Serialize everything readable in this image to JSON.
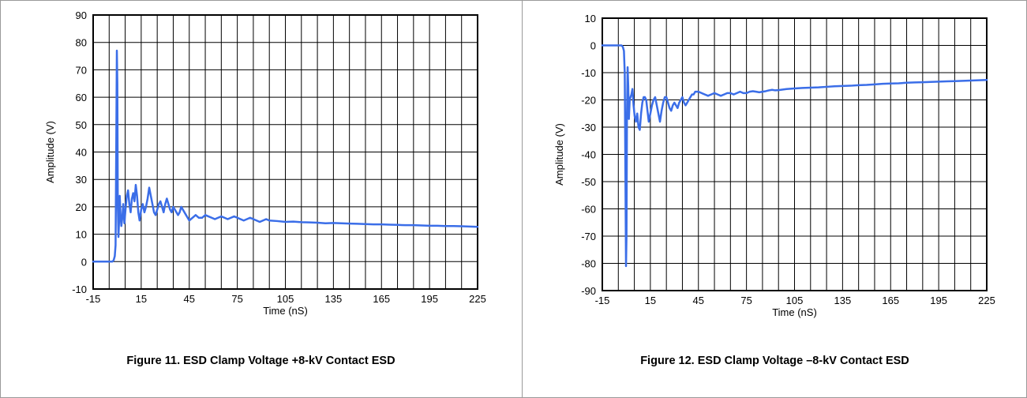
{
  "chart_data": [
    {
      "type": "line",
      "caption": "Figure 11. ESD Clamp Voltage +8-kV Contact ESD",
      "xlabel": "Time (nS)",
      "ylabel": "Amplitude (V)",
      "xlim": [
        -15,
        225
      ],
      "ylim": [
        -10,
        90
      ],
      "xticks": [
        -15,
        15,
        45,
        75,
        105,
        135,
        165,
        195,
        225
      ],
      "yticks": [
        -10,
        0,
        10,
        20,
        30,
        40,
        50,
        60,
        70,
        80,
        90
      ],
      "grid": true,
      "color": "#3b6ee8",
      "series": [
        {
          "x": [
            -15,
            -3,
            -2.2,
            -1.5,
            -1,
            -0.6,
            -0.2,
            0.1,
            0.4,
            0.8,
            1.2,
            1.6,
            2.1,
            2.6,
            3.2,
            3.8,
            4.5,
            5.2,
            6,
            6.8,
            7.6,
            8.4,
            9.2,
            10,
            10.8,
            11.6,
            12.4,
            13.2,
            14,
            15,
            16,
            17,
            18,
            19,
            20,
            21,
            22,
            23,
            24,
            25,
            26,
            27,
            28,
            29,
            30,
            31,
            32,
            33,
            34,
            35,
            36,
            37,
            38,
            39,
            40,
            41,
            42,
            43,
            44,
            45,
            47,
            49,
            51,
            53,
            55,
            57,
            59,
            61,
            63,
            65,
            67,
            69,
            71,
            73,
            75,
            77,
            79,
            81,
            83,
            85,
            87,
            89,
            91,
            93,
            95,
            100,
            105,
            110,
            115,
            120,
            125,
            130,
            135,
            140,
            145,
            150,
            155,
            160,
            165,
            170,
            175,
            180,
            185,
            190,
            195,
            200,
            205,
            210,
            215,
            220,
            225
          ],
          "y": [
            0,
            0,
            0.5,
            2,
            6,
            40,
            77,
            65,
            20,
            9,
            15,
            24,
            17,
            13,
            16,
            21,
            14,
            19,
            24,
            26,
            21,
            18,
            23,
            25,
            22,
            28,
            24,
            18,
            15,
            19,
            21,
            18,
            20,
            23,
            27,
            24,
            21,
            18,
            17,
            19,
            21,
            22,
            20,
            18,
            21,
            23,
            21,
            19,
            18,
            20,
            19,
            18,
            17,
            18,
            20,
            19,
            18,
            17,
            16,
            15,
            16,
            17,
            16,
            16,
            17,
            16.5,
            16,
            15.5,
            16,
            16.5,
            16,
            15.5,
            16,
            16.5,
            16,
            15.5,
            15,
            15.5,
            16,
            15.5,
            15,
            14.5,
            15,
            15.5,
            15,
            14.8,
            14.5,
            14.6,
            14.4,
            14.3,
            14.2,
            14,
            14.1,
            14,
            13.9,
            13.8,
            13.7,
            13.6,
            13.6,
            13.5,
            13.4,
            13.3,
            13.3,
            13.2,
            13.1,
            13.1,
            13,
            13,
            12.9,
            12.8,
            12.7
          ]
        }
      ]
    },
    {
      "type": "line",
      "caption": "Figure 12. ESD Clamp Voltage –8-kV Contact ESD",
      "xlabel": "Time (nS)",
      "ylabel": "Amplitude (V)",
      "xlim": [
        -15,
        225
      ],
      "ylim": [
        -90,
        10
      ],
      "xticks": [
        -15,
        15,
        45,
        75,
        105,
        135,
        165,
        195,
        225
      ],
      "yticks": [
        -90,
        -80,
        -70,
        -60,
        -50,
        -40,
        -30,
        -20,
        -10,
        0,
        10
      ],
      "grid": true,
      "color": "#3b6ee8",
      "series": [
        {
          "x": [
            -15,
            -3,
            -2.2,
            -1.5,
            -1,
            -0.6,
            -0.2,
            0.1,
            0.4,
            0.8,
            1.2,
            1.6,
            2.1,
            2.6,
            3.2,
            3.8,
            4.5,
            5.2,
            6,
            6.8,
            7.6,
            8.4,
            9.2,
            10,
            10.8,
            11.6,
            12.4,
            13.2,
            14,
            15,
            16,
            17,
            18,
            19,
            20,
            21,
            22,
            23,
            24,
            25,
            26,
            27,
            28,
            29,
            30,
            31,
            32,
            33,
            34,
            35,
            36,
            37,
            38,
            39,
            40,
            41,
            42,
            43,
            44,
            45,
            47,
            49,
            51,
            53,
            55,
            57,
            59,
            61,
            63,
            65,
            67,
            69,
            71,
            73,
            75,
            77,
            79,
            81,
            83,
            85,
            87,
            89,
            91,
            93,
            95,
            100,
            105,
            110,
            115,
            120,
            125,
            130,
            135,
            140,
            145,
            150,
            155,
            160,
            165,
            170,
            175,
            180,
            185,
            190,
            195,
            200,
            205,
            210,
            215,
            220,
            225
          ],
          "y": [
            0,
            0,
            -0.5,
            -2,
            -10,
            -45,
            -81,
            -70,
            -25,
            -8,
            -15,
            -27,
            -20,
            -19,
            -18,
            -16,
            -22,
            -26,
            -28,
            -25,
            -30,
            -31,
            -25,
            -21,
            -19,
            -19,
            -20,
            -24,
            -28,
            -25,
            -22,
            -20,
            -19,
            -22,
            -25,
            -28,
            -24,
            -21,
            -19,
            -19,
            -21,
            -23,
            -24,
            -22,
            -21,
            -22,
            -23,
            -21,
            -20,
            -19,
            -21,
            -22,
            -21,
            -20,
            -19,
            -18,
            -18,
            -17,
            -17,
            -17,
            -17.5,
            -18,
            -18.5,
            -18,
            -17.5,
            -18,
            -18.5,
            -18,
            -17.5,
            -17.5,
            -18,
            -17.5,
            -17,
            -17.5,
            -17.5,
            -17,
            -16.8,
            -17,
            -17.2,
            -17,
            -16.8,
            -16.5,
            -16.3,
            -16.5,
            -16.4,
            -16,
            -15.8,
            -15.6,
            -15.5,
            -15.4,
            -15.2,
            -15,
            -14.9,
            -14.8,
            -14.6,
            -14.5,
            -14.3,
            -14.1,
            -14,
            -13.9,
            -13.7,
            -13.6,
            -13.5,
            -13.4,
            -13.3,
            -13.2,
            -13.1,
            -13,
            -12.9,
            -12.8,
            -12.7
          ]
        }
      ]
    }
  ]
}
